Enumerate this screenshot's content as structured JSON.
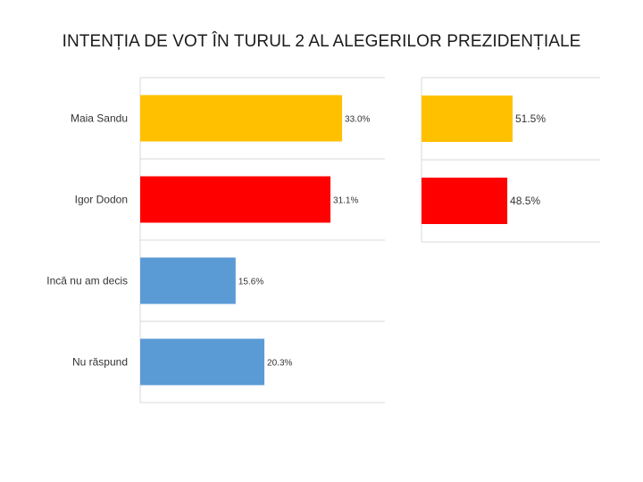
{
  "slide": {
    "title": "INTENȚIA DE VOT ÎN TURUL 2 AL ALEGERILOR PREZIDENȚIALE"
  },
  "chart_data": [
    {
      "type": "bar",
      "orientation": "horizontal",
      "categories": [
        "Maia Sandu",
        "Igor Dodon",
        "Incă nu am decis",
        "Nu răspund"
      ],
      "values": [
        33.0,
        31.1,
        15.6,
        20.3
      ],
      "value_labels": [
        "33.0%",
        "31.1%",
        "15.6%",
        "20.3%"
      ],
      "colors": [
        "#FFC000",
        "#FF0000",
        "#5B9BD5",
        "#5B9BD5"
      ],
      "xlim": [
        0,
        40
      ],
      "grid": "horizontal separators"
    },
    {
      "type": "bar",
      "orientation": "horizontal",
      "categories": [
        "Maia Sandu",
        "Igor Dodon"
      ],
      "values": [
        51.5,
        48.5
      ],
      "value_labels": [
        "51.5%",
        "48.5%"
      ],
      "colors": [
        "#FFC000",
        "#FF0000"
      ],
      "xlim": [
        0,
        60
      ],
      "grid": "horizontal separators"
    }
  ]
}
